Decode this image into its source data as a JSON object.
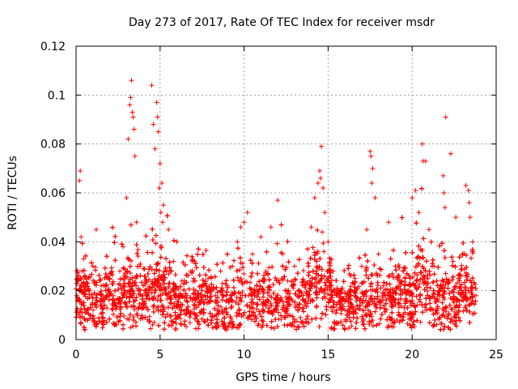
{
  "chart_data": {
    "type": "scatter",
    "title": "Day 273 of 2017, Rate Of TEC Index for receiver msdr",
    "xlabel": "GPS time / hours",
    "ylabel": "ROTI / TECUs",
    "xlim": [
      0,
      25
    ],
    "ylim": [
      0,
      0.12
    ],
    "x_ticks": [
      "0",
      "5",
      "10",
      "15",
      "20",
      "25"
    ],
    "y_ticks": [
      "0",
      "0.02",
      "0.04",
      "0.06",
      "0.08",
      "0.1",
      "0.12"
    ],
    "x_tick_values": [
      0,
      5,
      10,
      15,
      20,
      25
    ],
    "y_tick_values": [
      0,
      0.02,
      0.04,
      0.06,
      0.08,
      0.1,
      0.12
    ],
    "grid": true,
    "marker": "+",
    "color": "#ff0000",
    "series": [
      {
        "x": [
          0.05,
          0.1,
          0.2,
          0.25,
          0.3,
          0.35,
          0.4,
          0.5,
          0.6,
          0.8,
          1.0,
          1.2,
          1.5,
          1.8,
          2.0,
          2.3,
          2.6,
          2.8,
          3.0,
          3.1,
          3.2,
          3.3,
          3.4,
          3.5,
          3.6,
          3.8,
          4.0,
          4.2,
          4.5,
          4.6,
          4.7,
          4.8,
          4.9,
          5.0,
          5.1,
          5.2,
          5.5,
          5.8,
          6.0,
          6.3,
          6.6,
          7.0,
          7.3,
          7.6,
          8.0,
          8.3,
          8.6,
          9.0,
          9.3,
          9.6,
          9.8,
          10.0,
          10.2,
          10.5,
          10.8,
          11.0,
          11.3,
          11.6,
          12.0,
          12.3,
          12.6,
          13.0,
          13.3,
          13.6,
          14.0,
          14.2,
          14.4,
          14.5,
          14.6,
          14.7,
          14.8,
          15.0,
          15.3,
          15.6,
          16.0,
          16.3,
          16.6,
          17.0,
          17.3,
          17.5,
          17.6,
          17.8,
          18.0,
          18.3,
          18.6,
          19.0,
          19.3,
          19.6,
          20.0,
          20.2,
          20.4,
          20.6,
          20.8,
          21.0,
          21.3,
          21.6,
          21.9,
          22.0,
          22.3,
          22.6,
          23.0,
          23.2,
          23.4,
          23.6,
          23.8,
          0.15,
          0.45,
          0.55,
          1.1,
          2.2,
          3.25,
          3.35,
          3.45,
          4.55,
          4.65,
          4.85,
          4.95,
          5.05,
          5.15,
          14.55,
          14.65,
          14.75,
          17.55,
          17.65,
          20.65,
          21.85,
          21.95,
          23.35,
          23.45
        ],
        "y": [
          0.018,
          0.025,
          0.065,
          0.069,
          0.042,
          0.028,
          0.015,
          0.004,
          0.012,
          0.02,
          0.03,
          0.045,
          0.022,
          0.018,
          0.025,
          0.016,
          0.028,
          0.038,
          0.058,
          0.082,
          0.096,
          0.106,
          0.091,
          0.075,
          0.048,
          0.03,
          0.022,
          0.02,
          0.104,
          0.088,
          0.078,
          0.097,
          0.085,
          0.072,
          0.064,
          0.055,
          0.045,
          0.032,
          0.04,
          0.024,
          0.018,
          0.025,
          0.015,
          0.022,
          0.02,
          0.018,
          0.028,
          0.022,
          0.03,
          0.04,
          0.046,
          0.048,
          0.052,
          0.035,
          0.02,
          0.042,
          0.028,
          0.046,
          0.057,
          0.035,
          0.024,
          0.03,
          0.018,
          0.022,
          0.046,
          0.058,
          0.064,
          0.069,
          0.079,
          0.062,
          0.052,
          0.04,
          0.028,
          0.02,
          0.012,
          0.018,
          0.025,
          0.03,
          0.045,
          0.077,
          0.064,
          0.058,
          0.035,
          0.022,
          0.048,
          0.03,
          0.02,
          0.025,
          0.058,
          0.061,
          0.052,
          0.08,
          0.073,
          0.045,
          0.03,
          0.02,
          0.06,
          0.091,
          0.076,
          0.05,
          0.035,
          0.063,
          0.056,
          0.04,
          0.018,
          0.01,
          0.033,
          0.008,
          0.006,
          0.014,
          0.099,
          0.093,
          0.086,
          0.006,
          0.007,
          0.091,
          0.062,
          0.052,
          0.048,
          0.066,
          0.044,
          0.036,
          0.075,
          0.07,
          0.073,
          0.067,
          0.054,
          0.061,
          0.05
        ]
      }
    ]
  }
}
